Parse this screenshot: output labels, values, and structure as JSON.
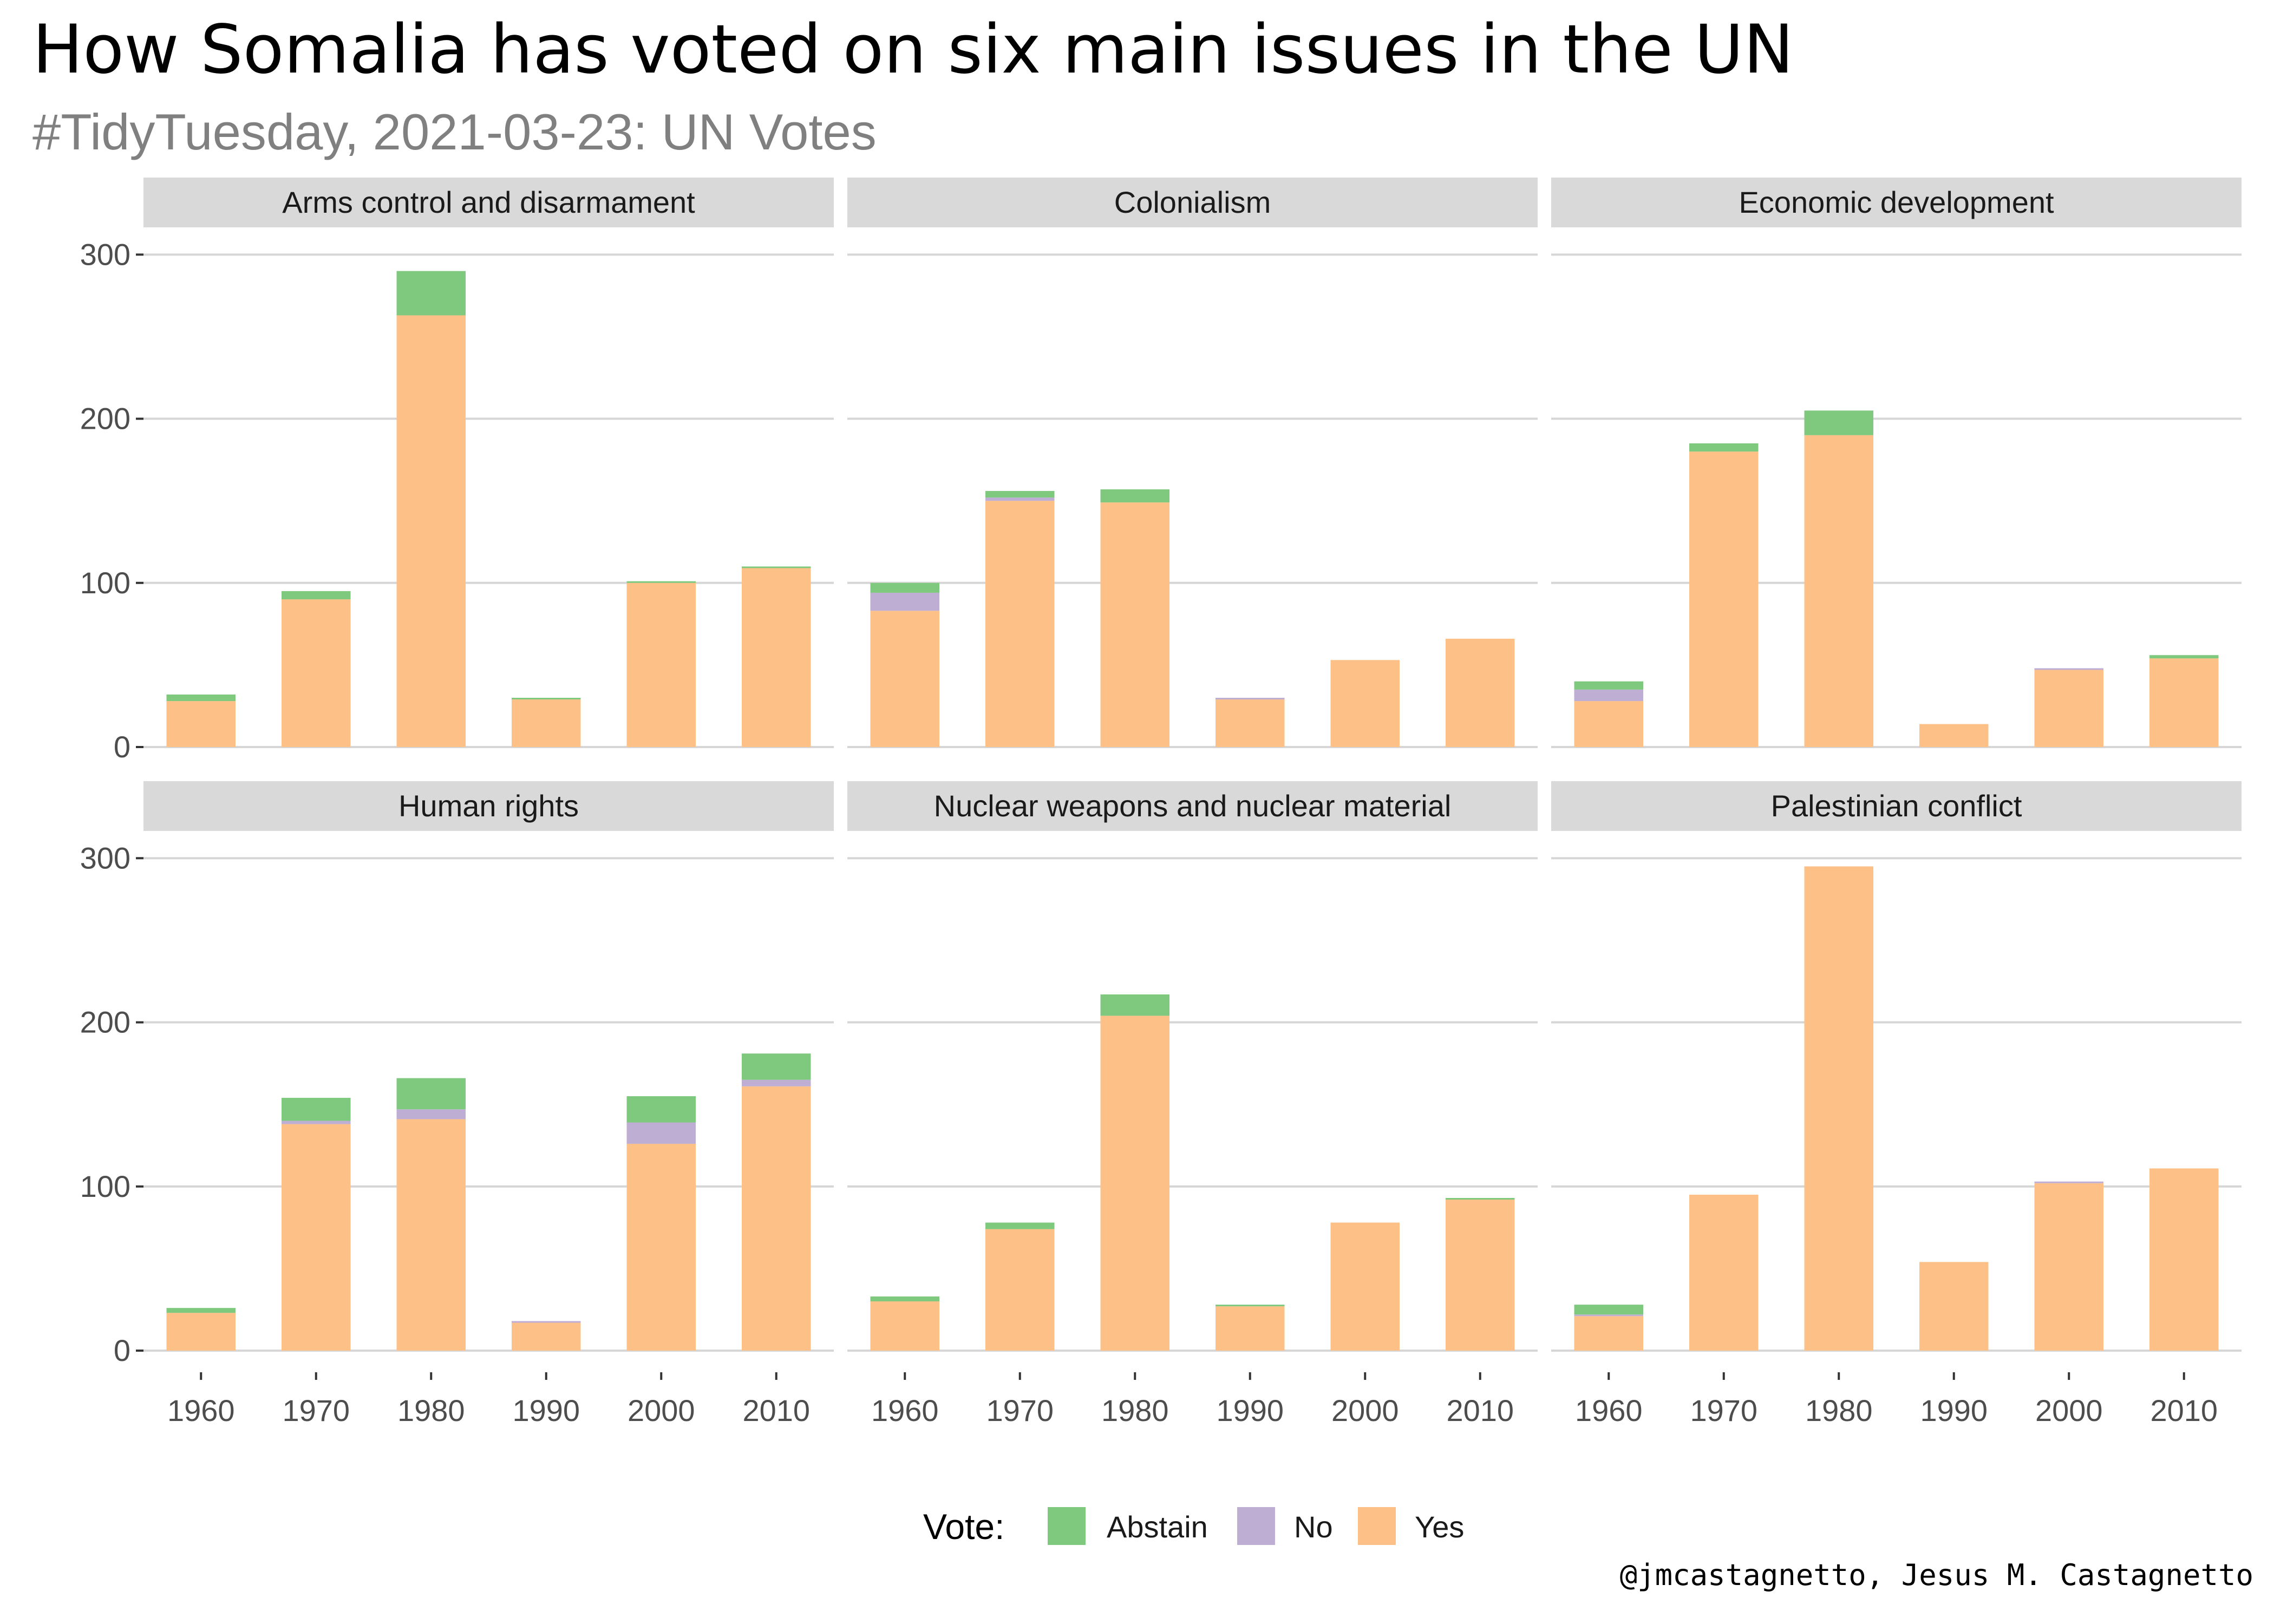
{
  "title": "How Somalia has voted on six main issues in the UN",
  "subtitle": "#TidyTuesday, 2021-03-23: UN Votes",
  "caption": "@jmcastagnetto, Jesus M. Castagnetto",
  "legend": {
    "title": "Vote:",
    "items": [
      {
        "label": "Abstain",
        "color": "#7fc97f"
      },
      {
        "label": "No",
        "color": "#beaed4"
      },
      {
        "label": "Yes",
        "color": "#fdc086"
      }
    ]
  },
  "chart_data": {
    "type": "bar",
    "stacked": true,
    "facets_layout": "2 rows x 3 columns",
    "categories": [
      "1960",
      "1970",
      "1980",
      "1990",
      "2000",
      "2010"
    ],
    "ylim": [
      0,
      310
    ],
    "yticks": [
      0,
      100,
      200,
      300
    ],
    "grid": true,
    "legend_position": "bottom",
    "series_order_bottom_to_top": [
      "Yes",
      "No",
      "Abstain"
    ],
    "facets": [
      {
        "name": "Arms control and disarmament",
        "series": [
          {
            "name": "Yes",
            "values": [
              28,
              90,
              263,
              29,
              100,
              109
            ]
          },
          {
            "name": "No",
            "values": [
              0,
              0,
              0,
              0,
              0,
              0
            ]
          },
          {
            "name": "Abstain",
            "values": [
              4,
              5,
              27,
              1,
              1,
              1
            ]
          }
        ]
      },
      {
        "name": "Colonialism",
        "series": [
          {
            "name": "Yes",
            "values": [
              83,
              150,
              149,
              29,
              53,
              66
            ]
          },
          {
            "name": "No",
            "values": [
              11,
              2,
              0,
              1,
              0,
              0
            ]
          },
          {
            "name": "Abstain",
            "values": [
              6,
              4,
              8,
              0,
              0,
              0
            ]
          }
        ]
      },
      {
        "name": "Economic development",
        "series": [
          {
            "name": "Yes",
            "values": [
              28,
              180,
              190,
              14,
              47,
              54
            ]
          },
          {
            "name": "No",
            "values": [
              7,
              0,
              0,
              0,
              1,
              0
            ]
          },
          {
            "name": "Abstain",
            "values": [
              5,
              5,
              15,
              0,
              0,
              2
            ]
          }
        ]
      },
      {
        "name": "Human rights",
        "series": [
          {
            "name": "Yes",
            "values": [
              23,
              138,
              141,
              17,
              126,
              161
            ]
          },
          {
            "name": "No",
            "values": [
              0,
              2,
              6,
              1,
              13,
              4
            ]
          },
          {
            "name": "Abstain",
            "values": [
              3,
              14,
              19,
              0,
              16,
              16
            ]
          }
        ]
      },
      {
        "name": "Nuclear weapons and nuclear material",
        "series": [
          {
            "name": "Yes",
            "values": [
              30,
              74,
              204,
              27,
              78,
              92
            ]
          },
          {
            "name": "No",
            "values": [
              0,
              0,
              0,
              0,
              0,
              0
            ]
          },
          {
            "name": "Abstain",
            "values": [
              3,
              4,
              13,
              1,
              0,
              1
            ]
          }
        ]
      },
      {
        "name": "Palestinian conflict",
        "series": [
          {
            "name": "Yes",
            "values": [
              21,
              95,
              295,
              54,
              102,
              111
            ]
          },
          {
            "name": "No",
            "values": [
              1,
              0,
              0,
              0,
              1,
              0
            ]
          },
          {
            "name": "Abstain",
            "values": [
              6,
              0,
              0,
              0,
              0,
              0
            ]
          }
        ]
      }
    ]
  }
}
